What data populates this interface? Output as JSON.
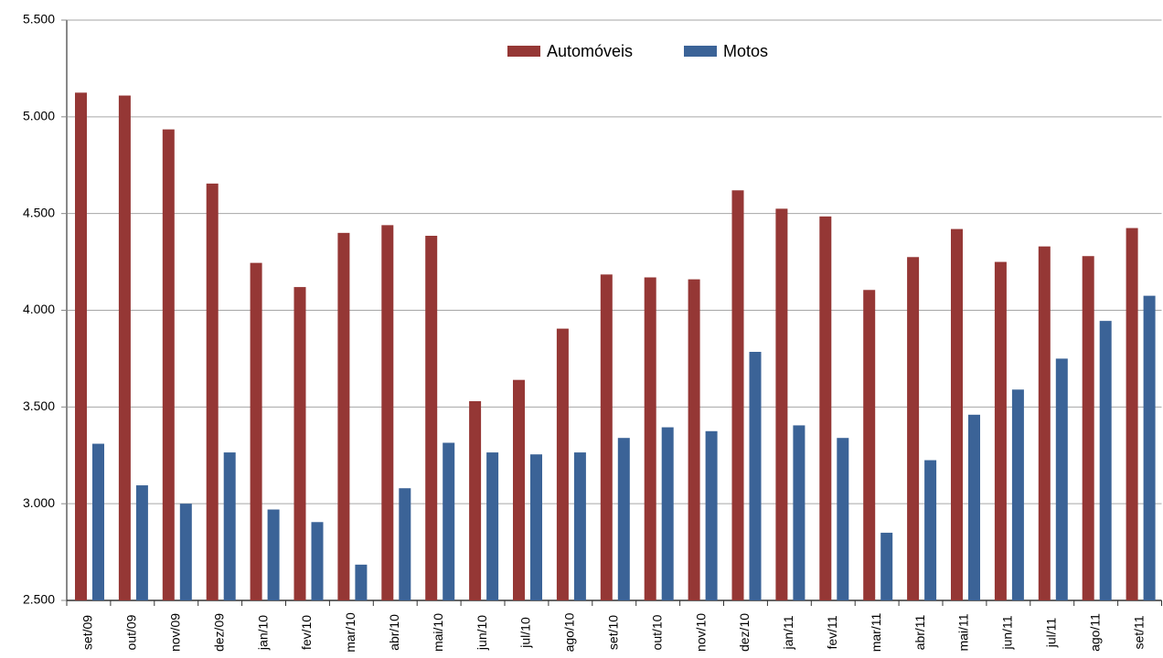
{
  "chart_data": {
    "type": "bar",
    "categories": [
      "set/09",
      "out/09",
      "nov/09",
      "dez/09",
      "jan/10",
      "fev/10",
      "mar/10",
      "abr/10",
      "mai/10",
      "jun/10",
      "jul/10",
      "ago/10",
      "set/10",
      "out/10",
      "nov/10",
      "dez/10",
      "jan/11",
      "fev/11",
      "mar/11",
      "abr/11",
      "mai/11",
      "jun/11",
      "jul/11",
      "ago/11",
      "set/11"
    ],
    "series": [
      {
        "name": "Automóveis",
        "color": "#953735",
        "values": [
          5125,
          5110,
          4935,
          4655,
          4245,
          4120,
          4400,
          4440,
          4385,
          3530,
          3640,
          3905,
          4185,
          4170,
          4160,
          4620,
          4525,
          4485,
          4105,
          4275,
          4420,
          4250,
          4330,
          4280,
          4425
        ]
      },
      {
        "name": "Motos",
        "color": "#3b6397",
        "values": [
          3310,
          3095,
          3000,
          3265,
          2970,
          2905,
          2685,
          3080,
          3315,
          3265,
          3255,
          3265,
          3340,
          3395,
          3375,
          3785,
          3405,
          3340,
          2850,
          3225,
          3460,
          3590,
          3750,
          3945,
          4075
        ]
      }
    ],
    "ylim": [
      2500,
      5500
    ],
    "yticks": [
      {
        "value": 2500,
        "label": "2.500"
      },
      {
        "value": 3000,
        "label": "3.000"
      },
      {
        "value": 3500,
        "label": "3.500"
      },
      {
        "value": 4000,
        "label": "4.000"
      },
      {
        "value": 4500,
        "label": "4.500"
      },
      {
        "value": 5000,
        "label": "5.000"
      },
      {
        "value": 5500,
        "label": "5.500"
      }
    ],
    "grid": true,
    "legend": "top"
  }
}
